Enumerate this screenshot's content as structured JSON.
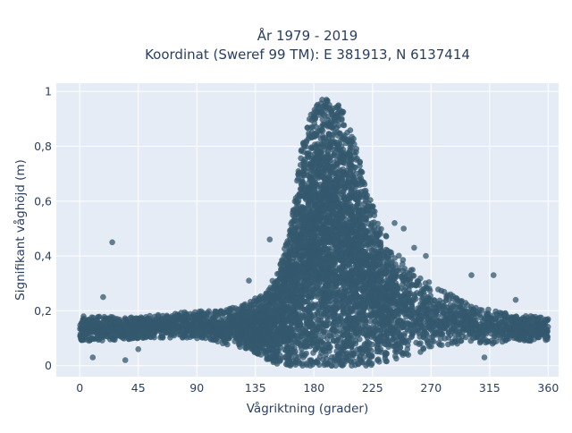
{
  "chart_data": {
    "type": "scatter",
    "title_line1": "År 1979 - 2019",
    "title_line2": "Koordinat (Sweref 99 TM): E 381913, N 6137414",
    "xlabel": "Vågriktning (grader)",
    "ylabel": "Signifikant våghöjd (m)",
    "xlim": [
      -18,
      368
    ],
    "ylim": [
      -0.04,
      1.03
    ],
    "x_ticks": [
      0,
      45,
      90,
      135,
      180,
      225,
      270,
      315,
      360
    ],
    "y_ticks": [
      0,
      0.2,
      0.4,
      0.6,
      0.8,
      1
    ],
    "y_tick_labels": [
      "0",
      "0,2",
      "0,4",
      "0,6",
      "0,8",
      "1"
    ],
    "grid": true,
    "background_color": "#e5ecf6",
    "marker_color": "#34586e",
    "envelope": {
      "x": [
        0,
        20,
        45,
        70,
        90,
        110,
        130,
        145,
        155,
        163,
        170,
        178,
        185,
        192,
        200,
        208,
        215,
        222,
        230,
        240,
        250,
        262,
        275,
        290,
        305,
        320,
        335,
        350,
        360
      ],
      "y_max": [
        0.18,
        0.18,
        0.18,
        0.19,
        0.2,
        0.2,
        0.23,
        0.28,
        0.38,
        0.55,
        0.78,
        0.93,
        0.97,
        0.97,
        0.95,
        0.87,
        0.75,
        0.62,
        0.53,
        0.45,
        0.38,
        0.33,
        0.28,
        0.25,
        0.22,
        0.2,
        0.19,
        0.18,
        0.17
      ],
      "y_min": [
        0.09,
        0.09,
        0.1,
        0.1,
        0.1,
        0.08,
        0.06,
        0.02,
        0.0,
        0.0,
        0.0,
        0.0,
        0.0,
        0.0,
        0.0,
        0.0,
        0.0,
        0.0,
        0.01,
        0.02,
        0.03,
        0.05,
        0.07,
        0.08,
        0.08,
        0.08,
        0.09,
        0.09,
        0.09
      ]
    },
    "outliers": [
      {
        "x": 25,
        "y": 0.45
      },
      {
        "x": 18,
        "y": 0.25
      },
      {
        "x": 10,
        "y": 0.03
      },
      {
        "x": 35,
        "y": 0.02
      },
      {
        "x": 45,
        "y": 0.06
      },
      {
        "x": 130,
        "y": 0.31
      },
      {
        "x": 146,
        "y": 0.46
      },
      {
        "x": 242,
        "y": 0.52
      },
      {
        "x": 249,
        "y": 0.5
      },
      {
        "x": 257,
        "y": 0.43
      },
      {
        "x": 266,
        "y": 0.4
      },
      {
        "x": 301,
        "y": 0.33
      },
      {
        "x": 318,
        "y": 0.33
      },
      {
        "x": 335,
        "y": 0.24
      },
      {
        "x": 311,
        "y": 0.03
      }
    ]
  }
}
